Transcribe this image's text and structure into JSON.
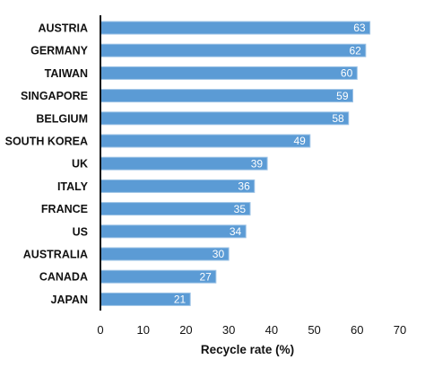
{
  "chart_data": {
    "type": "bar",
    "orientation": "horizontal",
    "categories": [
      "AUSTRIA",
      "GERMANY",
      "TAIWAN",
      "SINGAPORE",
      "BELGIUM",
      "SOUTH KOREA",
      "UK",
      "ITALY",
      "FRANCE",
      "US",
      "AUSTRALIA",
      "CANADA",
      "JAPAN"
    ],
    "values": [
      63,
      62,
      60,
      59,
      58,
      49,
      39,
      36,
      35,
      34,
      30,
      27,
      21
    ],
    "xlabel": "Recycle rate (%)",
    "xlim": [
      0,
      70
    ],
    "xticks": [
      0,
      10,
      20,
      30,
      40,
      50,
      60,
      70
    ],
    "grid": false,
    "bar_color": "#5B9BD5",
    "bar_edge_color": "#9DC3E6",
    "data_label_color": "#FFFFFF"
  }
}
